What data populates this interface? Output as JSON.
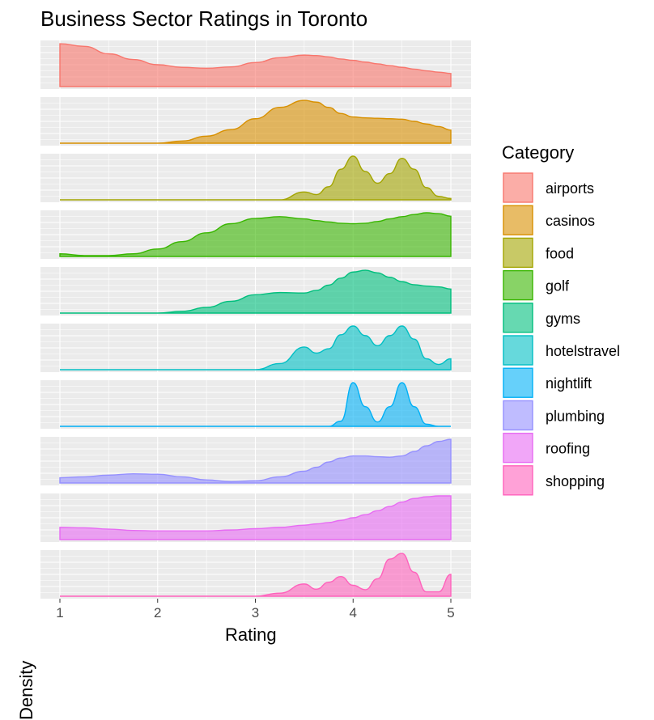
{
  "chart_data": {
    "type": "area",
    "title": "Business Sector Ratings in Toronto",
    "xlabel": "Rating",
    "ylabel": "Density",
    "xlim": [
      1,
      5
    ],
    "xticks": [
      "1",
      "2",
      "3",
      "4",
      "5"
    ],
    "legend_title": "Category",
    "legend_position": "right",
    "grid": true,
    "x": [
      1.0,
      1.25,
      1.5,
      1.75,
      2.0,
      2.25,
      2.5,
      2.75,
      3.0,
      3.25,
      3.5,
      3.625,
      3.75,
      3.875,
      4.0,
      4.125,
      4.25,
      4.375,
      4.5,
      4.625,
      4.75,
      4.875,
      5.0
    ],
    "series": [
      {
        "name": "airports",
        "color": "#F8766D",
        "values": [
          0.98,
          0.92,
          0.75,
          0.62,
          0.5,
          0.44,
          0.42,
          0.45,
          0.55,
          0.66,
          0.72,
          0.71,
          0.68,
          0.63,
          0.6,
          0.56,
          0.52,
          0.48,
          0.44,
          0.4,
          0.36,
          0.33,
          0.3
        ]
      },
      {
        "name": "casinos",
        "color": "#D89000",
        "values": [
          0.0,
          0.0,
          0.0,
          0.0,
          0.0,
          0.05,
          0.16,
          0.31,
          0.56,
          0.82,
          0.98,
          0.94,
          0.82,
          0.68,
          0.6,
          0.58,
          0.57,
          0.56,
          0.55,
          0.5,
          0.44,
          0.38,
          0.3
        ]
      },
      {
        "name": "food",
        "color": "#A3A500",
        "values": [
          0.0,
          0.0,
          0.0,
          0.0,
          0.0,
          0.0,
          0.0,
          0.0,
          0.0,
          0.0,
          0.18,
          0.12,
          0.3,
          0.7,
          1.0,
          0.65,
          0.38,
          0.6,
          0.95,
          0.7,
          0.28,
          0.08,
          0.03
        ]
      },
      {
        "name": "golf",
        "color": "#39B600",
        "values": [
          0.06,
          0.02,
          0.02,
          0.06,
          0.17,
          0.34,
          0.54,
          0.75,
          0.87,
          0.91,
          0.86,
          0.82,
          0.79,
          0.76,
          0.75,
          0.76,
          0.8,
          0.86,
          0.91,
          0.96,
          1.0,
          0.98,
          0.92
        ]
      },
      {
        "name": "gyms",
        "color": "#00BF7D",
        "values": [
          0.0,
          0.0,
          0.0,
          0.0,
          0.0,
          0.04,
          0.13,
          0.27,
          0.42,
          0.47,
          0.46,
          0.52,
          0.64,
          0.8,
          0.94,
          0.98,
          0.92,
          0.82,
          0.72,
          0.65,
          0.62,
          0.6,
          0.55
        ]
      },
      {
        "name": "hotelstravel",
        "color": "#00BFC4",
        "values": [
          0.0,
          0.0,
          0.0,
          0.0,
          0.0,
          0.0,
          0.0,
          0.0,
          0.0,
          0.14,
          0.52,
          0.38,
          0.48,
          0.8,
          1.0,
          0.78,
          0.55,
          0.78,
          1.0,
          0.7,
          0.25,
          0.12,
          0.25
        ]
      },
      {
        "name": "nightlift",
        "color": "#00B0F6",
        "values": [
          0.0,
          0.0,
          0.0,
          0.0,
          0.0,
          0.0,
          0.0,
          0.0,
          0.0,
          0.0,
          0.0,
          0.0,
          0.0,
          0.12,
          1.0,
          0.45,
          0.1,
          0.45,
          1.0,
          0.45,
          0.05,
          0.0,
          0.0
        ]
      },
      {
        "name": "plumbing",
        "color": "#9590FF",
        "values": [
          0.12,
          0.14,
          0.18,
          0.21,
          0.2,
          0.14,
          0.07,
          0.03,
          0.05,
          0.14,
          0.27,
          0.36,
          0.48,
          0.57,
          0.62,
          0.62,
          0.6,
          0.59,
          0.62,
          0.72,
          0.85,
          0.95,
          1.0
        ]
      },
      {
        "name": "roofing",
        "color": "#E76BF3",
        "values": [
          0.28,
          0.27,
          0.24,
          0.21,
          0.2,
          0.2,
          0.2,
          0.22,
          0.25,
          0.28,
          0.33,
          0.36,
          0.39,
          0.44,
          0.5,
          0.57,
          0.66,
          0.76,
          0.86,
          0.94,
          0.98,
          1.0,
          1.0
        ]
      },
      {
        "name": "shopping",
        "color": "#FF62BC",
        "values": [
          0.0,
          0.0,
          0.0,
          0.0,
          0.0,
          0.0,
          0.0,
          0.0,
          0.0,
          0.07,
          0.28,
          0.16,
          0.32,
          0.45,
          0.25,
          0.15,
          0.4,
          0.85,
          0.98,
          0.55,
          0.1,
          0.1,
          0.5
        ]
      }
    ]
  }
}
